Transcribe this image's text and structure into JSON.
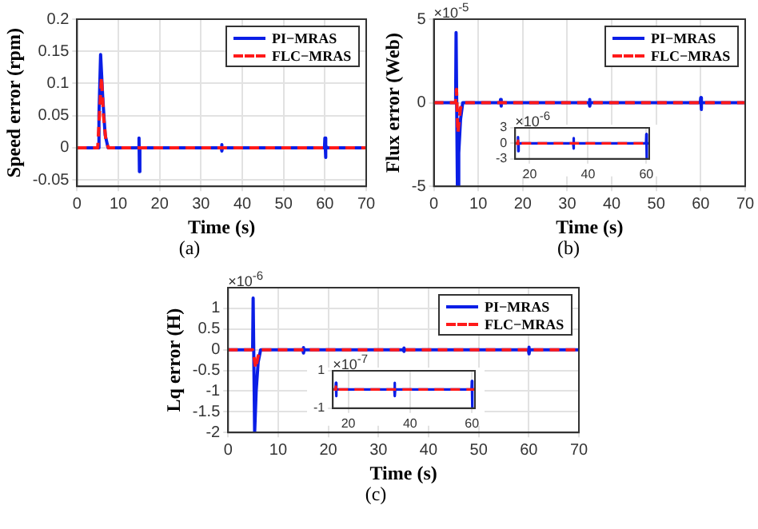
{
  "chart_data": [
    {
      "type": "line",
      "xlabel": "Time (s)",
      "ylabel": "Speed error (rpm)",
      "annotations": [
        "(a)"
      ],
      "xlim": [
        0,
        70
      ],
      "xticks": [
        0,
        10,
        20,
        30,
        40,
        50,
        60,
        70
      ],
      "ylim": [
        -0.06,
        0.2
      ],
      "yticks": [
        -0.05,
        0,
        0.05,
        0.1,
        0.15,
        0.2
      ],
      "grid": true,
      "legend": "top right",
      "marker": "none",
      "series": [
        {
          "name": "PI−MRAS",
          "color": "#0a1ee6",
          "line_style": "solid",
          "x": [
            0,
            5,
            5.3,
            5.7,
            6.2,
            6.8,
            7.5,
            14.9,
            15,
            15.1,
            15.2,
            34.9,
            35,
            35.1,
            35.2,
            59.9,
            60,
            60.1,
            60.3,
            60.5,
            70
          ],
          "values": [
            0,
            0,
            0.05,
            0.145,
            0.08,
            0.02,
            0,
            0,
            0.015,
            -0.037,
            0,
            0,
            0.005,
            -0.005,
            0,
            0,
            0.015,
            -0.015,
            0.003,
            0,
            0
          ]
        },
        {
          "name": "FLC−MRAS",
          "color": "#ff1a1a",
          "line_style": "dashed",
          "x": [
            0,
            5,
            5.4,
            5.9,
            6.4,
            7,
            7.6,
            70
          ],
          "values": [
            0,
            0,
            0.05,
            0.11,
            0.05,
            0.01,
            0,
            0
          ]
        }
      ]
    },
    {
      "type": "line",
      "xlabel": "Time (s)",
      "ylabel": "Flux error (Web)",
      "annotations": [
        "×10$^{-5}$",
        "(b)"
      ],
      "xlim": [
        0,
        70
      ],
      "xticks": [
        0,
        10,
        20,
        30,
        40,
        50,
        60,
        70
      ],
      "ylim": [
        -5,
        5
      ],
      "yticks": [
        -5,
        0,
        5
      ],
      "grid": true,
      "legend": "top right",
      "marker": "none",
      "series": [
        {
          "name": "PI−MRAS",
          "color": "#0a1ee6",
          "line_style": "solid",
          "x": [
            0,
            4.9,
            5,
            5.3,
            5.6,
            6,
            6.5,
            14.9,
            15,
            15.1,
            15.2,
            34.9,
            35,
            35.1,
            35.2,
            59.9,
            60,
            60.1,
            60.2,
            70
          ],
          "values": [
            0,
            0,
            4.2,
            -5,
            -3,
            -1,
            0,
            0,
            0.2,
            -0.2,
            0,
            0,
            0.2,
            -0.2,
            0,
            0,
            0.3,
            -0.4,
            0,
            0
          ]
        },
        {
          "name": "FLC−MRAS",
          "color": "#ff1a1a",
          "line_style": "dashed",
          "x": [
            0,
            4.9,
            5.1,
            5.4,
            6,
            6.5,
            70
          ],
          "values": [
            0,
            0,
            0.8,
            -1.8,
            -0.3,
            0,
            0
          ]
        }
      ]
    },
    {
      "type": "line",
      "annotations": [
        "×10$^{-6}$"
      ],
      "xlim": [
        15,
        61
      ],
      "xticks": [
        20,
        40,
        60
      ],
      "ylim": [
        -3,
        3
      ],
      "yticks": [
        -3,
        0,
        3
      ],
      "grid": true,
      "marker": "none",
      "series": [
        {
          "color": "#0a1ee6",
          "line_style": "solid",
          "x": [
            15,
            15.9,
            16,
            16.1,
            16.2,
            34.9,
            35,
            35.1,
            35.2,
            59.9,
            60,
            60.1,
            60.2,
            61
          ],
          "values": [
            0,
            0,
            1.2,
            -1.5,
            0,
            0,
            1,
            -1,
            0,
            0,
            1.8,
            -3,
            0,
            0
          ]
        },
        {
          "color": "#ff1a1a",
          "line_style": "dashed",
          "x": [
            15,
            15.9,
            16,
            16.1,
            16.2,
            61
          ],
          "values": [
            0,
            0,
            0.5,
            -0.5,
            0,
            0
          ]
        }
      ]
    },
    {
      "type": "line",
      "xlabel": "Time (s)",
      "ylabel": "Lq error (H)",
      "annotations": [
        "×10$^{-6}$",
        "(c)"
      ],
      "xlim": [
        0,
        70
      ],
      "xticks": [
        0,
        10,
        20,
        30,
        40,
        50,
        60,
        70
      ],
      "ylim": [
        -2,
        1.5
      ],
      "yticks": [
        -2,
        -1.5,
        -1,
        -0.5,
        0,
        0.5,
        1
      ],
      "grid": true,
      "legend": "top right",
      "marker": "none",
      "series": [
        {
          "name": "PI−MRAS",
          "color": "#0a1ee6",
          "line_style": "solid",
          "x": [
            0,
            4.9,
            5,
            5.3,
            5.6,
            6,
            6.5,
            14.9,
            15,
            15.1,
            15.2,
            34.9,
            35,
            35.1,
            35.2,
            59.9,
            60,
            60.1,
            60.2,
            70
          ],
          "values": [
            0,
            0,
            1.25,
            -2,
            -1,
            -0.3,
            0,
            0,
            0.05,
            -0.08,
            0,
            0,
            0.04,
            -0.04,
            0,
            0,
            0.06,
            -0.1,
            0,
            0
          ]
        },
        {
          "name": "FLC−MRAS",
          "color": "#ff1a1a",
          "line_style": "dashed",
          "x": [
            0,
            4.9,
            5.2,
            5.5,
            6,
            6.5,
            70
          ],
          "values": [
            0,
            0,
            -0.2,
            -0.45,
            -0.15,
            0,
            0
          ]
        }
      ]
    },
    {
      "type": "line",
      "annotations": [
        "×10$^{-7}$"
      ],
      "xlim": [
        15,
        61
      ],
      "xticks": [
        20,
        40,
        60
      ],
      "ylim": [
        -1,
        1
      ],
      "yticks": [
        -1,
        1
      ],
      "grid": true,
      "marker": "none",
      "series": [
        {
          "color": "#0a1ee6",
          "line_style": "solid",
          "x": [
            15,
            15.9,
            16,
            16.1,
            16.2,
            34.9,
            35,
            35.1,
            35.2,
            59.9,
            60,
            60.1,
            60.2,
            61
          ],
          "values": [
            0,
            0,
            0.35,
            -0.35,
            0,
            0,
            0.35,
            -0.35,
            0,
            0,
            0.45,
            -1,
            0,
            0
          ]
        },
        {
          "color": "#ff1a1a",
          "line_style": "dashed",
          "x": [
            15,
            15.9,
            16,
            16.1,
            16.2,
            61
          ],
          "values": [
            0,
            0,
            0.15,
            -0.15,
            0,
            0
          ]
        }
      ]
    }
  ]
}
